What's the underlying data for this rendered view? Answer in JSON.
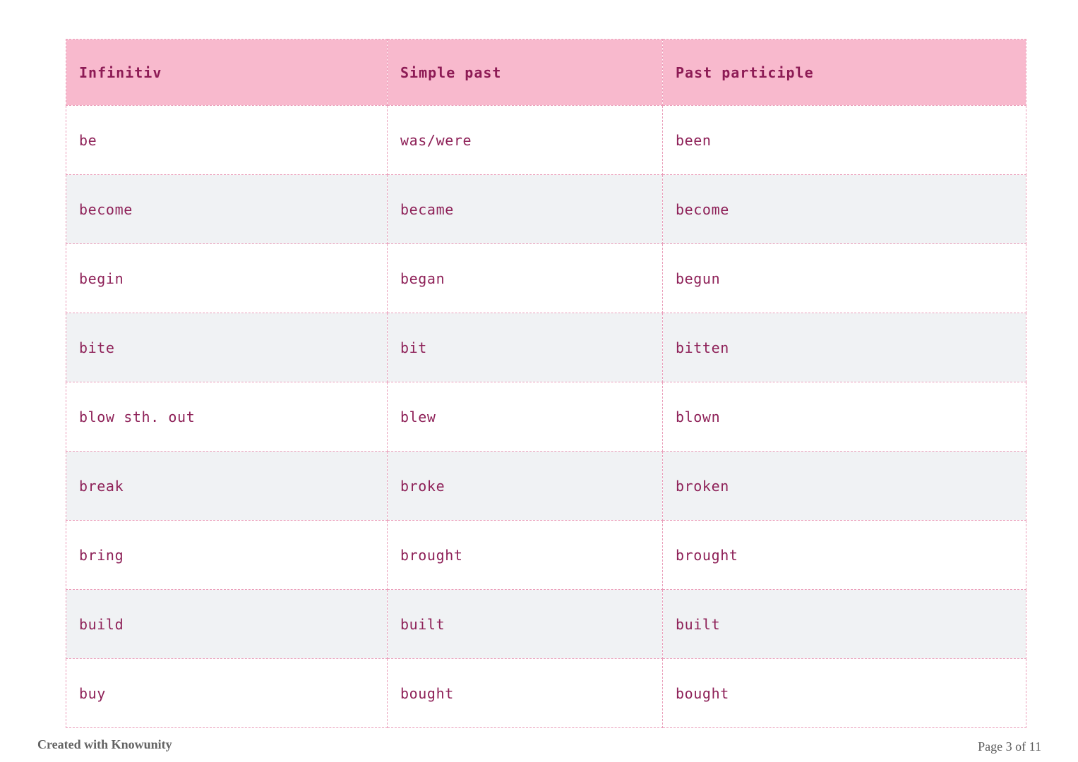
{
  "table": {
    "columns": [
      "Infinitiv",
      "Simple past",
      "Past participle"
    ],
    "rows": [
      [
        "be",
        "was/were",
        "been"
      ],
      [
        "become",
        "became",
        "become"
      ],
      [
        "begin",
        "began",
        "begun"
      ],
      [
        "bite",
        "bit",
        "bitten"
      ],
      [
        "blow sth. out",
        "blew",
        "blown"
      ],
      [
        "break",
        "broke",
        "broken"
      ],
      [
        "bring",
        "brought",
        "brought"
      ],
      [
        "build",
        "built",
        "built"
      ],
      [
        "buy",
        "bought",
        "bought"
      ]
    ]
  },
  "footer": {
    "branding": "Created with Knowunity",
    "page_indicator": "Page 3 of 11"
  },
  "colors": {
    "header_bg": "#f8b9cd",
    "header_text": "#8d1b55",
    "cell_text": "#8e2158",
    "border": "#ea9db9",
    "row_bg": "#ffffff",
    "row_alt_bg": "#f0f2f4",
    "footer_text": "#636363"
  }
}
